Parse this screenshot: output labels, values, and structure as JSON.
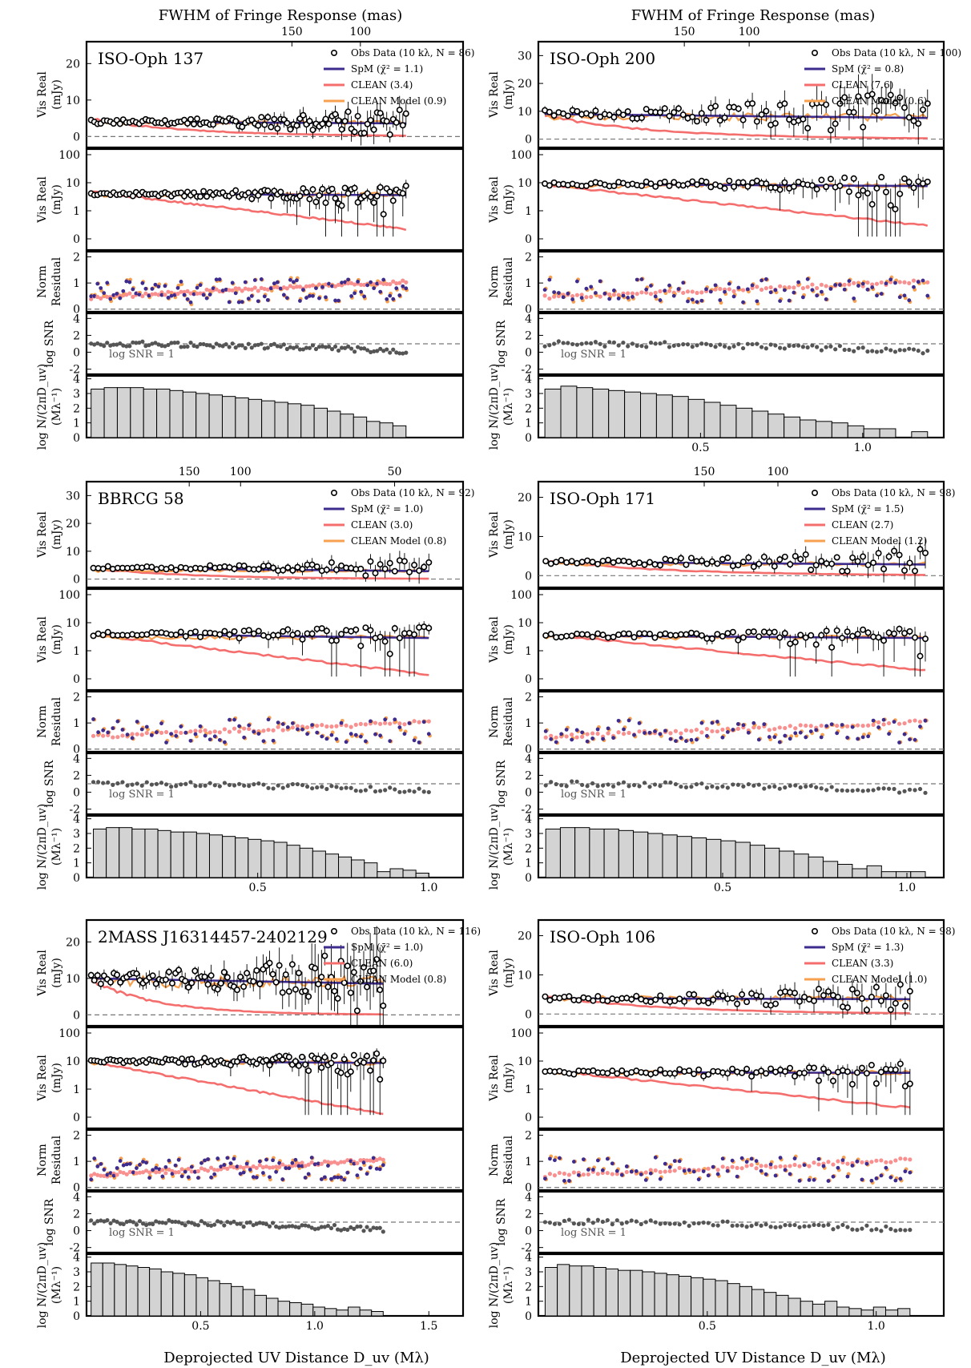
{
  "common": {
    "top_axis_title": "FWHM of Fringe Response (mas)",
    "xlabel": "Deprojected UV Distance D_uv (Mλ)",
    "ylabels": {
      "real_lin": [
        "Vis Real",
        "(mJy)"
      ],
      "real_log": [
        "Vis Real",
        "(mJy)"
      ],
      "resid": [
        "Norm",
        "Residual"
      ],
      "snr": [
        "log SNR"
      ],
      "hist": [
        "log N/(2πD_uv)",
        "(Mλ⁻¹)"
      ]
    },
    "snr_label": "log SNR = 1",
    "legend_labels": {
      "obs": "Obs Data (10 kλ, N = {N})",
      "spm": "SpM (χ̄² = {chi})",
      "clean": "CLEAN ({clean})",
      "model": "CLEAN Model ({model})"
    },
    "colors": {
      "spm": "#3d2c8d",
      "clean": "#f56e6e",
      "model": "#f7a150",
      "hist_fill": "#d3d3d3",
      "snr_points": "#555555",
      "resid_clean": "#f99090"
    }
  },
  "chart_data": [
    {
      "type": "line",
      "title": "ISO-Oph 137",
      "N": 86,
      "chi2": "1.1",
      "clean_label": "3.4",
      "model_label": "0.9",
      "xlim": [
        0,
        1.65
      ],
      "xticks": [],
      "top_ticks": [
        "150",
        "100"
      ],
      "top_tick_x": [
        0.9,
        1.2
      ],
      "lin_ylim": [
        -3,
        26
      ],
      "lin_yticks": [
        0,
        10,
        20
      ],
      "vis_level": 4.0,
      "model_level": 3.8,
      "clean_amp": 5.0,
      "clean_decay": 0.45,
      "hist_values": [
        3.3,
        3.4,
        3.4,
        3.4,
        3.3,
        3.3,
        3.2,
        3.1,
        3.0,
        2.9,
        2.8,
        2.7,
        2.6,
        2.5,
        2.4,
        2.3,
        2.2,
        2.0,
        1.8,
        1.6,
        1.4,
        1.1,
        1.0,
        0.8
      ],
      "hist_xmax": 1.4
    },
    {
      "type": "line",
      "title": "ISO-Oph 200",
      "N": 100,
      "chi2": "0.8",
      "clean_label": "7.6",
      "model_label": "0.6",
      "xlim": [
        0,
        1.25
      ],
      "xticks": [
        0.5,
        1.0
      ],
      "top_ticks": [
        "150",
        "100"
      ],
      "top_tick_x": [
        0.45,
        0.65
      ],
      "lin_ylim": [
        -3,
        35
      ],
      "lin_yticks": [
        0,
        10,
        20,
        30
      ],
      "vis_level": 9.0,
      "model_level": 8.0,
      "clean_amp": 9.0,
      "clean_decay": 0.35,
      "hist_values": [
        3.3,
        3.5,
        3.4,
        3.3,
        3.2,
        3.1,
        3.0,
        2.9,
        2.8,
        2.6,
        2.4,
        2.2,
        2.0,
        1.8,
        1.6,
        1.4,
        1.2,
        1.1,
        1.0,
        0.8,
        0.6,
        0.6,
        0.0,
        0.4
      ],
      "hist_xmax": 1.2
    },
    {
      "type": "line",
      "title": "BBRCG 58",
      "N": 92,
      "chi2": "1.0",
      "clean_label": "3.0",
      "model_label": "0.8",
      "xlim": [
        0,
        1.1
      ],
      "xticks": [
        0.5,
        1.0
      ],
      "top_ticks": [
        "150",
        "100",
        "50"
      ],
      "top_tick_x": [
        0.3,
        0.45,
        0.9
      ],
      "lin_ylim": [
        -3,
        35
      ],
      "lin_yticks": [
        0,
        10,
        20,
        30
      ],
      "vis_level": 4.0,
      "model_level": 3.0,
      "clean_amp": 4.0,
      "clean_decay": 0.3,
      "hist_values": [
        3.3,
        3.4,
        3.4,
        3.3,
        3.3,
        3.2,
        3.1,
        3.1,
        3.0,
        2.9,
        2.8,
        2.7,
        2.6,
        2.5,
        2.4,
        2.2,
        2.0,
        1.8,
        1.6,
        1.4,
        1.2,
        1.0,
        0.4,
        0.6,
        0.5,
        0.3
      ],
      "hist_xmax": 1.0
    },
    {
      "type": "line",
      "title": "ISO-Oph 171",
      "N": 98,
      "chi2": "1.5",
      "clean_label": "2.7",
      "model_label": "1.2",
      "xlim": [
        0,
        1.1
      ],
      "xticks": [
        0.5,
        1.0
      ],
      "top_ticks": [
        "150",
        "100"
      ],
      "top_tick_x": [
        0.45,
        0.65
      ],
      "lin_ylim": [
        -3,
        24
      ],
      "lin_yticks": [
        0,
        10,
        20
      ],
      "vis_level": 3.5,
      "model_level": 3.0,
      "clean_amp": 4.0,
      "clean_decay": 0.35,
      "hist_values": [
        3.3,
        3.4,
        3.4,
        3.3,
        3.3,
        3.2,
        3.1,
        3.0,
        2.9,
        2.8,
        2.7,
        2.6,
        2.5,
        2.4,
        2.2,
        2.0,
        1.8,
        1.6,
        1.4,
        1.1,
        0.9,
        0.6,
        0.8,
        0.4,
        0.4,
        0.4
      ],
      "hist_xmax": 1.05
    },
    {
      "type": "line",
      "title": "2MASS J16314457-2402129",
      "N": 116,
      "chi2": "1.0",
      "clean_label": "6.0",
      "model_label": "0.8",
      "xlim": [
        0,
        1.65
      ],
      "xticks": [
        0.5,
        1.0,
        1.5
      ],
      "top_ticks": [],
      "top_tick_x": [],
      "lin_ylim": [
        -3,
        26
      ],
      "lin_yticks": [
        0,
        10,
        20
      ],
      "vis_level": 10.0,
      "model_level": 9.0,
      "clean_amp": 10.0,
      "clean_decay": 0.3,
      "hist_values": [
        3.6,
        3.6,
        3.5,
        3.4,
        3.3,
        3.2,
        3.0,
        2.9,
        2.8,
        2.6,
        2.4,
        2.2,
        2.0,
        1.8,
        1.4,
        1.2,
        1.0,
        0.9,
        0.8,
        0.6,
        0.5,
        0.4,
        0.6,
        0.4,
        0.3
      ],
      "hist_xmax": 1.3
    },
    {
      "type": "line",
      "title": "ISO-Oph 106",
      "N": 98,
      "chi2": "1.3",
      "clean_label": "3.3",
      "model_label": "1.0",
      "xlim": [
        0,
        1.2
      ],
      "xticks": [
        0.5,
        1.0
      ],
      "top_ticks": [],
      "top_tick_x": [],
      "lin_ylim": [
        -3,
        24
      ],
      "lin_yticks": [
        0,
        10,
        20
      ],
      "vis_level": 4.0,
      "model_level": 4.0,
      "clean_amp": 5.0,
      "clean_decay": 0.35,
      "hist_values": [
        3.3,
        3.5,
        3.4,
        3.4,
        3.3,
        3.2,
        3.1,
        3.1,
        3.0,
        2.9,
        2.8,
        2.7,
        2.6,
        2.5,
        2.4,
        2.2,
        2.0,
        1.8,
        1.6,
        1.4,
        1.2,
        1.0,
        0.8,
        1.0,
        0.6,
        0.5,
        0.4,
        0.6,
        0.4,
        0.5
      ],
      "hist_xmax": 1.1
    }
  ]
}
